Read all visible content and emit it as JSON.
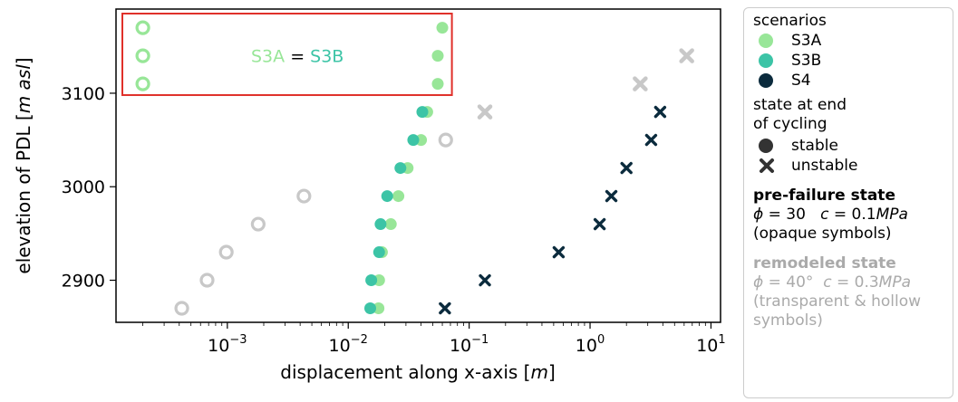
{
  "chart_data": {
    "type": "scatter",
    "x_scale": "log",
    "xlim": [
      0.00012,
      12
    ],
    "ylim": [
      2855,
      3190
    ],
    "xlabel_prefix": "displacement along x-axis [",
    "xlabel_unit": "m",
    "xlabel_suffix": "]",
    "ylabel_prefix": "elevation of PDL [",
    "ylabel_unit": "m asl",
    "ylabel_suffix": "]",
    "x_ticks": [
      {
        "value": 0.001,
        "base": "10",
        "exp": "−3"
      },
      {
        "value": 0.01,
        "base": "10",
        "exp": "−2"
      },
      {
        "value": 0.1,
        "base": "10",
        "exp": "−1"
      },
      {
        "value": 1,
        "base": "10",
        "exp": "0"
      },
      {
        "value": 10,
        "base": "10",
        "exp": "1"
      }
    ],
    "y_ticks": [
      2900,
      3000,
      3100
    ],
    "series": [
      {
        "name": "S3A",
        "color": "#98e698",
        "state": "pre-failure",
        "marker": "circle",
        "points": [
          [
            0.0178,
            2870
          ],
          [
            0.018,
            2900
          ],
          [
            0.019,
            2930
          ],
          [
            0.0225,
            2960
          ],
          [
            0.026,
            2990
          ],
          [
            0.031,
            3020
          ],
          [
            0.04,
            3050
          ],
          [
            0.045,
            3080
          ]
        ]
      },
      {
        "name": "S3B",
        "color": "#3cc4a6",
        "state": "pre-failure",
        "marker": "circle",
        "points": [
          [
            0.0152,
            2870
          ],
          [
            0.0155,
            2900
          ],
          [
            0.018,
            2930
          ],
          [
            0.0185,
            2960
          ],
          [
            0.021,
            2990
          ],
          [
            0.027,
            3020
          ],
          [
            0.0345,
            3050
          ],
          [
            0.041,
            3080
          ]
        ]
      },
      {
        "name": "S4",
        "color": "#0b2b3d",
        "state": "pre-failure",
        "marker": "x",
        "points": [
          [
            0.063,
            2870
          ],
          [
            0.135,
            2900
          ],
          [
            0.55,
            2930
          ],
          [
            1.2,
            2960
          ],
          [
            1.5,
            2990
          ],
          [
            2.0,
            3020
          ],
          [
            3.2,
            3050
          ],
          [
            3.8,
            3080
          ]
        ]
      },
      {
        "name": "S3A",
        "color": "#c8c8c8",
        "state": "remodeled",
        "marker": "hollow-circle",
        "points": [
          [
            0.00042,
            2870
          ],
          [
            0.00068,
            2900
          ],
          [
            0.00098,
            2930
          ],
          [
            0.0018,
            2960
          ],
          [
            0.0043,
            2990
          ],
          [
            0.064,
            3050
          ]
        ]
      },
      {
        "name": "S4",
        "color": "#c8c8c8",
        "state": "remodeled",
        "marker": "x",
        "points": [
          [
            0.135,
            3080
          ],
          [
            2.6,
            3110
          ],
          [
            6.3,
            3140
          ]
        ]
      },
      {
        "name": "S3A",
        "color": "#98e698",
        "state": "remodeled",
        "marker": "hollow-circle",
        "points": [
          [
            0.0002,
            3110
          ],
          [
            0.0002,
            3140
          ],
          [
            0.0002,
            3170
          ]
        ]
      },
      {
        "name": "S3A",
        "color": "#98e698",
        "state": "pre-failure",
        "marker": "circle",
        "points": [
          [
            0.055,
            3110
          ],
          [
            0.055,
            3140
          ],
          [
            0.06,
            3170
          ]
        ]
      }
    ],
    "annotation": {
      "left": "S3A",
      "mid": " = ",
      "right": "S3B",
      "left_color": "#98e698",
      "right_color": "#3cc4a6",
      "box_color": "#e0302a",
      "x_range": [
        0.00012,
        0.072
      ],
      "y_range": [
        3098,
        3190
      ]
    },
    "legend": {
      "position": "outside-right",
      "scenarios_title": "scenarios",
      "scenarios": [
        {
          "label": "S3A",
          "color": "#98e698"
        },
        {
          "label": "S3B",
          "color": "#3cc4a6"
        },
        {
          "label": "S4",
          "color": "#0b2b3d"
        }
      ],
      "state_title_1": "state at end",
      "state_title_2": "of cycling",
      "states": [
        {
          "label": "stable",
          "marker": "circle",
          "color": "#333333"
        },
        {
          "label": "unstable",
          "marker": "x",
          "color": "#333333"
        }
      ],
      "prefailure": {
        "title": "pre-failure state",
        "phi_symbol": "ϕ",
        "phi_value": " = 30",
        "c_symbol": "c",
        "c_value": " = 0.1",
        "c_unit": "MPa",
        "note": "(opaque symbols)"
      },
      "remodeled": {
        "title": "remodeled state",
        "phi_symbol": "ϕ",
        "phi_value": " = 40°",
        "c_symbol": "c",
        "c_value": " = 0.3",
        "c_unit": "MPa",
        "note_1": "(transparent & hollow",
        "note_2": "symbols)"
      }
    }
  }
}
